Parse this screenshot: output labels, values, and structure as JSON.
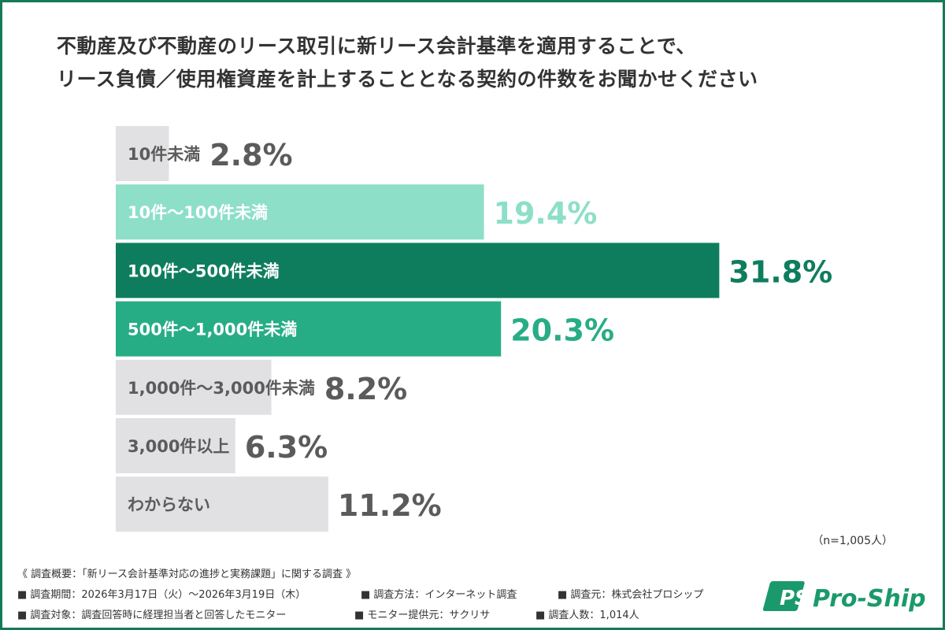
{
  "title_lines": [
    "不動産及び不動産のリース取引に新リース会計基準を適用することで、",
    "リース負債／使用権資産を計上することとなる契約の件数をお聞かせください"
  ],
  "chart_data": {
    "type": "bar",
    "orientation": "horizontal",
    "categories": [
      "10件未満",
      "10件～100件未満",
      "100件～500件未満",
      "500件～1,000件未満",
      "1,000件～3,000件未満",
      "3,000件以上",
      "わからない"
    ],
    "values": [
      2.8,
      19.4,
      31.8,
      20.3,
      8.2,
      6.3,
      11.2
    ],
    "value_labels": [
      "2.8%",
      "19.4%",
      "31.8%",
      "20.3%",
      "8.2%",
      "6.3%",
      "11.2%"
    ],
    "bar_colors": [
      "#e1e0e2",
      "#8ddfc8",
      "#0e7d5e",
      "#27ad85",
      "#e1e0e2",
      "#e1e0e2",
      "#e1e0e2"
    ],
    "label_colors": [
      "#5b5b5b",
      "#ffffff",
      "#ffffff",
      "#ffffff",
      "#5b5b5b",
      "#5b5b5b",
      "#5b5b5b"
    ],
    "value_colors": [
      "#5b5b5b",
      "#8ddfc8",
      "#0e7d5e",
      "#27ad85",
      "#5b5b5b",
      "#5b5b5b",
      "#5b5b5b"
    ],
    "unit": "%",
    "grid": false
  },
  "sample_note": "（n=1,005人）",
  "footer": {
    "heading": "《 調査概要：「新リース会計基準対応の進捗と実務課題」に関する調査 》",
    "row1": [
      "■ 調査期間：2026年3月17日（火）～2026年3月19日（木）",
      "■ 調査方法：インターネット調査",
      "■ 調査元：株式会社プロシップ"
    ],
    "row2": [
      "■ 調査対象：調査回答時に経理担当者と回答したモニター",
      "■ モニター提供元：サクリサ",
      "■ 調査人数：1,014人"
    ]
  },
  "logo": {
    "text": "Pro-Ship",
    "mark": "PS",
    "color": "#1a9a6c"
  }
}
